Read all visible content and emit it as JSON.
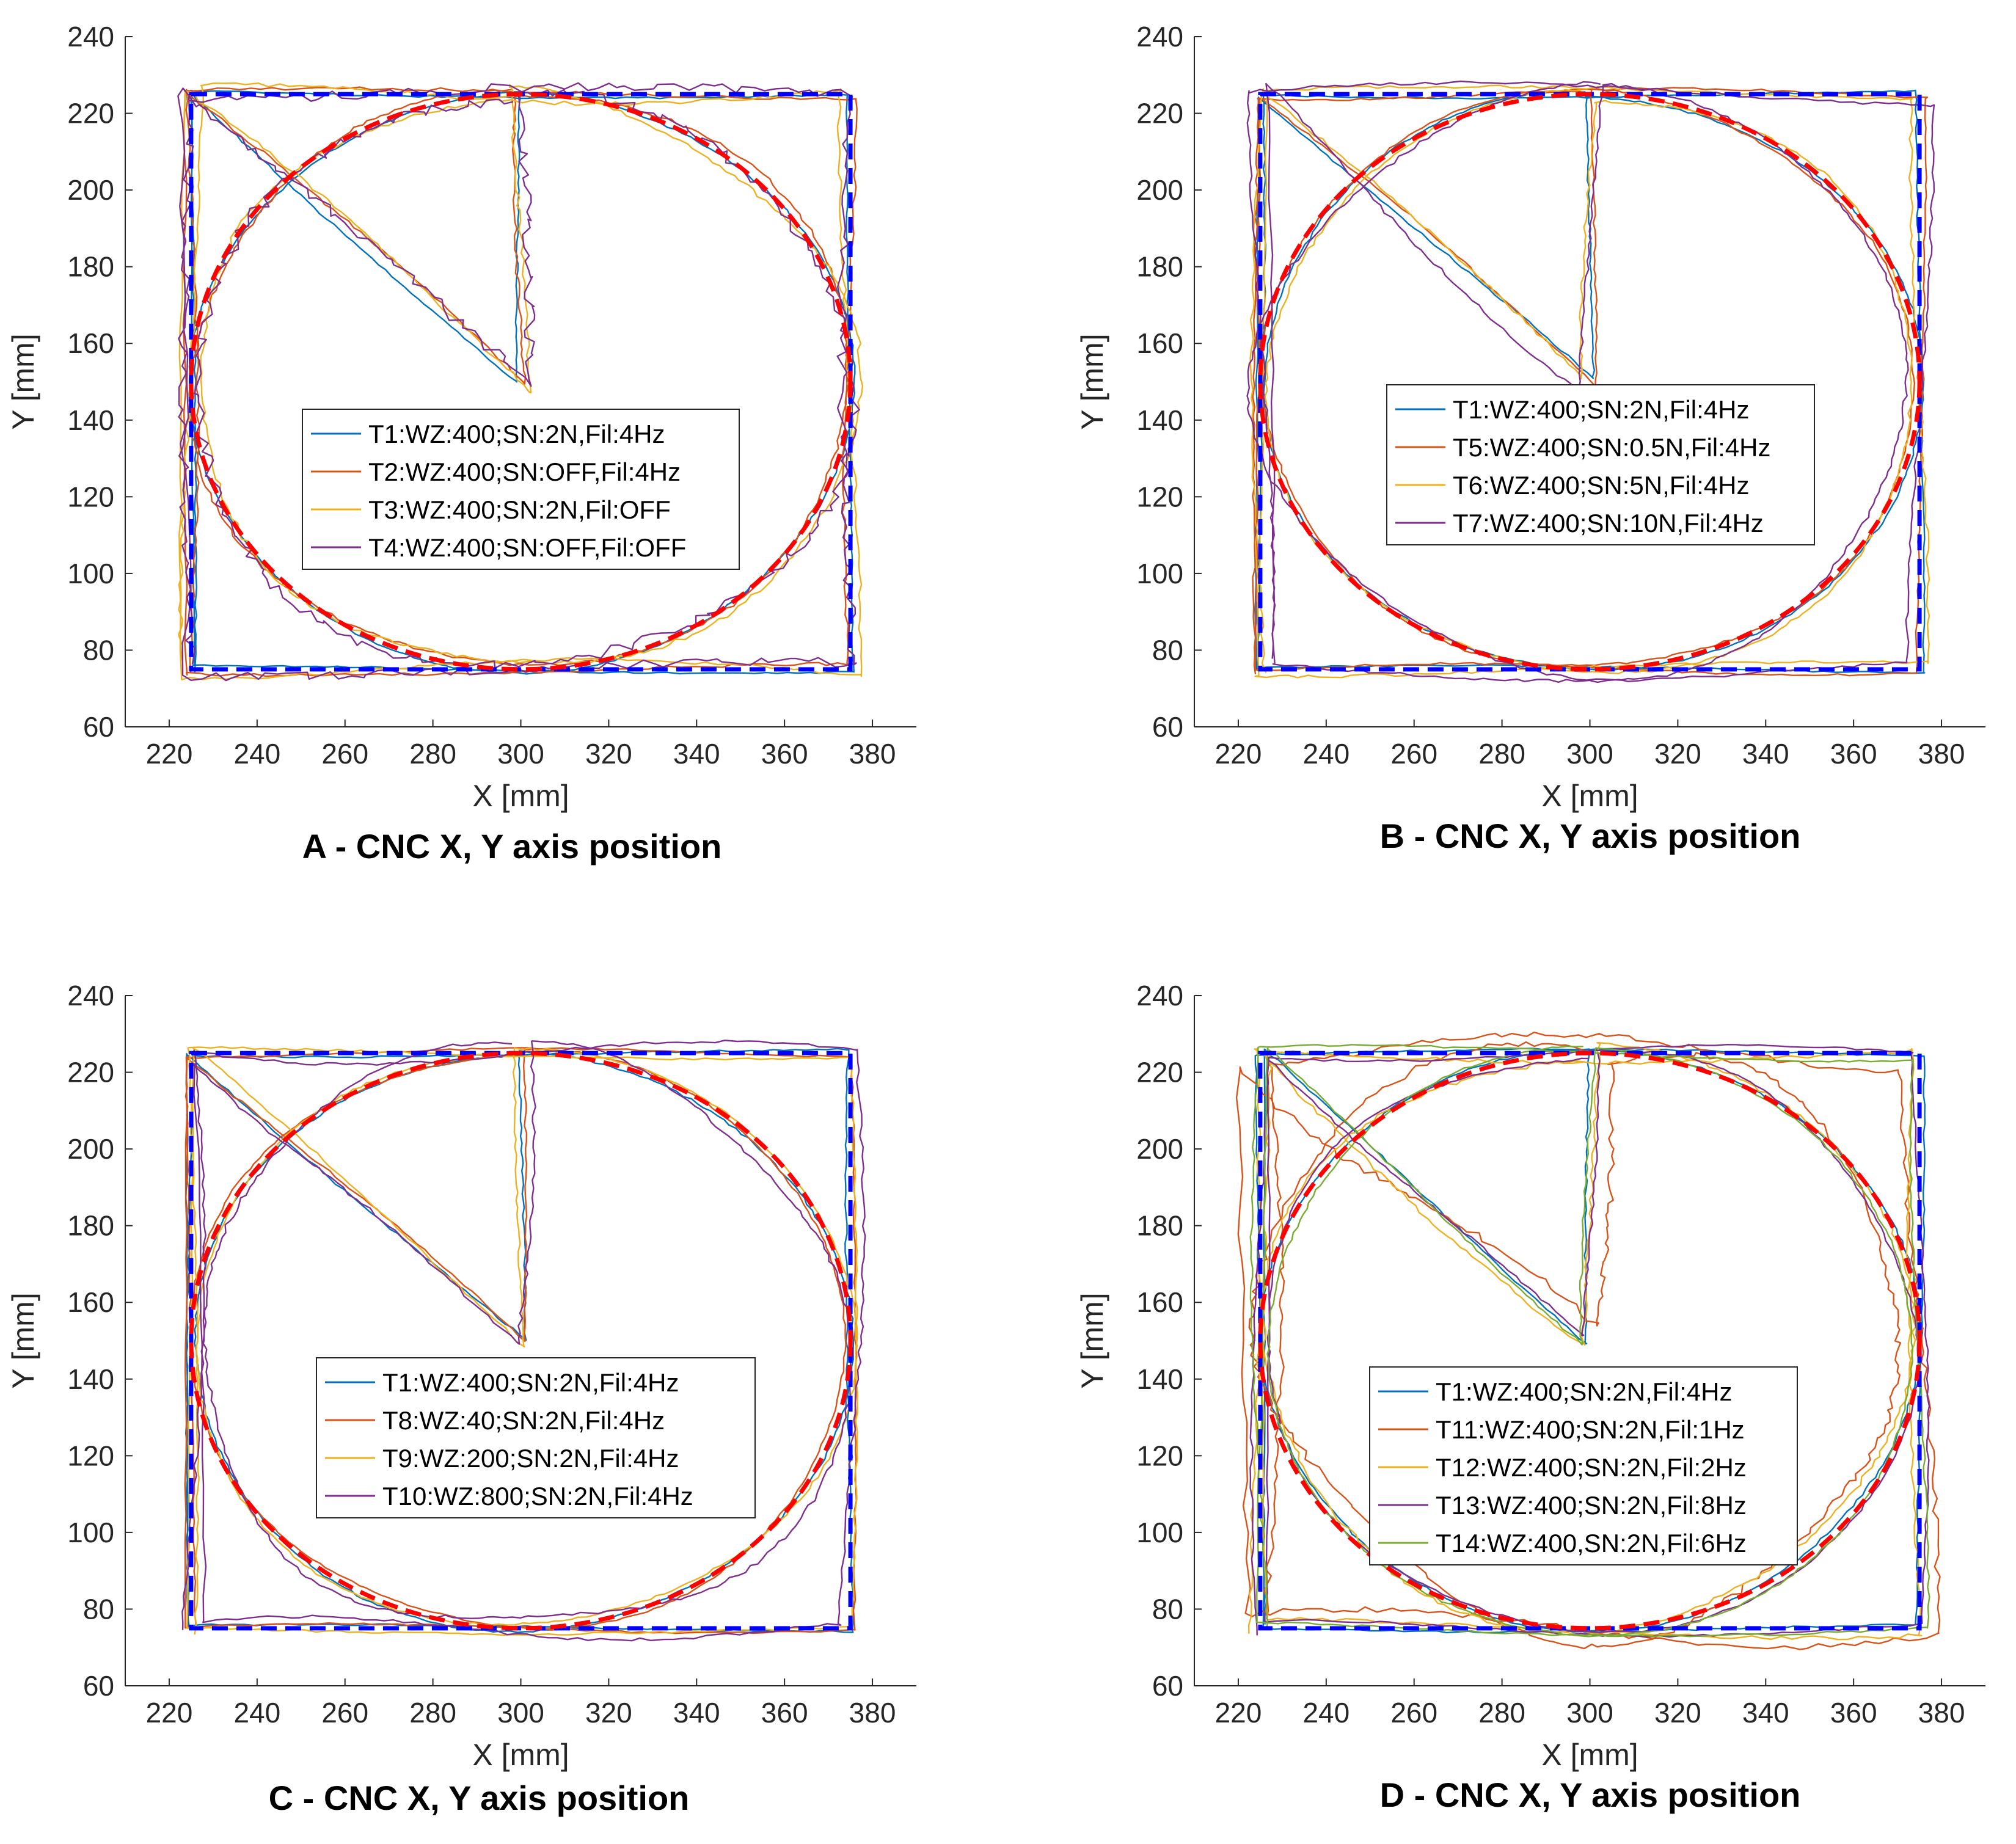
{
  "chart_data": [
    {
      "panel": "A",
      "type": "line",
      "caption": "A - CNC X, Y axis position",
      "xlabel": "X [mm]",
      "ylabel": "Y [mm]",
      "xlim": [
        210,
        390
      ],
      "ylim": [
        60,
        240
      ],
      "xticks": [
        220,
        240,
        260,
        280,
        300,
        320,
        340,
        360,
        380
      ],
      "yticks": [
        60,
        80,
        100,
        120,
        140,
        160,
        180,
        200,
        220,
        240
      ],
      "legend_position": "center",
      "reference": {
        "square": {
          "x": [
            225,
            375
          ],
          "y": [
            75,
            225
          ],
          "color": "#0000ff",
          "style": "dashed"
        },
        "circle": {
          "center": [
            300,
            150
          ],
          "radius": 75,
          "color": "#ff0000",
          "style": "dashed"
        }
      },
      "series": [
        {
          "name": "T1:WZ:400;SN:2N,Fil:4Hz",
          "color": "#0072bd",
          "dev": [
            1.0,
            0.5
          ],
          "seed": 11
        },
        {
          "name": "T2:WZ:400;SN:OFF,Fil:4Hz",
          "color": "#d95319",
          "dev": [
            1.5,
            0.8
          ],
          "seed": 12
        },
        {
          "name": "T3:WZ:400;SN:2N,Fil:OFF",
          "color": "#edb120",
          "dev": [
            2.5,
            1.0
          ],
          "seed": 13
        },
        {
          "name": "T4:WZ:400;SN:OFF,Fil:OFF",
          "color": "#7e2f8e",
          "dev": [
            2.0,
            2.5
          ],
          "seed": 14
        }
      ]
    },
    {
      "panel": "B",
      "type": "line",
      "caption": "B - CNC X, Y axis position",
      "xlabel": "X [mm]",
      "ylabel": "Y [mm]",
      "xlim": [
        210,
        390
      ],
      "ylim": [
        60,
        240
      ],
      "xticks": [
        220,
        240,
        260,
        280,
        300,
        320,
        340,
        360,
        380
      ],
      "yticks": [
        60,
        80,
        100,
        120,
        140,
        160,
        180,
        200,
        220,
        240
      ],
      "legend_position": "center",
      "reference": {
        "square": {
          "x": [
            225,
            375
          ],
          "y": [
            75,
            225
          ],
          "color": "#0000ff",
          "style": "dashed"
        },
        "circle": {
          "center": [
            300,
            150
          ],
          "radius": 75,
          "color": "#ff0000",
          "style": "dashed"
        }
      },
      "series": [
        {
          "name": "T1:WZ:400;SN:2N,Fil:4Hz",
          "color": "#0072bd",
          "dev": [
            1.0,
            0.5
          ],
          "seed": 21
        },
        {
          "name": "T5:WZ:400;SN:0.5N,Fil:4Hz",
          "color": "#d95319",
          "dev": [
            1.5,
            0.6
          ],
          "seed": 22
        },
        {
          "name": "T6:WZ:400;SN:5N,Fil:4Hz",
          "color": "#edb120",
          "dev": [
            2.0,
            0.8
          ],
          "seed": 23
        },
        {
          "name": "T7:WZ:400;SN:10N,Fil:4Hz",
          "color": "#7e2f8e",
          "dev": [
            3.0,
            0.8
          ],
          "seed": 24
        }
      ]
    },
    {
      "panel": "C",
      "type": "line",
      "caption": "C - CNC X, Y axis position",
      "xlabel": "X [mm]",
      "ylabel": "Y [mm]",
      "xlim": [
        210,
        390
      ],
      "ylim": [
        60,
        240
      ],
      "xticks": [
        220,
        240,
        260,
        280,
        300,
        320,
        340,
        360,
        380
      ],
      "yticks": [
        60,
        80,
        100,
        120,
        140,
        160,
        180,
        200,
        220,
        240
      ],
      "legend_position": "center",
      "reference": {
        "square": {
          "x": [
            225,
            375
          ],
          "y": [
            75,
            225
          ],
          "color": "#0000ff",
          "style": "dashed"
        },
        "circle": {
          "center": [
            300,
            150
          ],
          "radius": 75,
          "color": "#ff0000",
          "style": "dashed"
        }
      },
      "series": [
        {
          "name": "T1:WZ:400;SN:2N,Fil:4Hz",
          "color": "#0072bd",
          "dev": [
            1.0,
            0.5
          ],
          "seed": 31
        },
        {
          "name": "T8:WZ:40;SN:2N,Fil:4Hz",
          "color": "#d95319",
          "dev": [
            1.2,
            0.5
          ],
          "seed": 32
        },
        {
          "name": "T9:WZ:200;SN:2N,Fil:4Hz",
          "color": "#edb120",
          "dev": [
            1.5,
            0.6
          ],
          "seed": 33
        },
        {
          "name": "T10:WZ:800;SN:2N,Fil:4Hz",
          "color": "#7e2f8e",
          "dev": [
            3.0,
            0.8
          ],
          "seed": 34
        }
      ]
    },
    {
      "panel": "D",
      "type": "line",
      "caption": "D - CNC X, Y axis position",
      "xlabel": "X [mm]",
      "ylabel": "Y [mm]",
      "xlim": [
        210,
        390
      ],
      "ylim": [
        60,
        240
      ],
      "xticks": [
        220,
        240,
        260,
        280,
        300,
        320,
        340,
        360,
        380
      ],
      "yticks": [
        60,
        80,
        100,
        120,
        140,
        160,
        180,
        200,
        220,
        240
      ],
      "legend_position": "center",
      "reference": {
        "square": {
          "x": [
            225,
            375
          ],
          "y": [
            75,
            225
          ],
          "color": "#0000ff",
          "style": "dashed"
        },
        "circle": {
          "center": [
            300,
            150
          ],
          "radius": 75,
          "color": "#ff0000",
          "style": "dashed"
        }
      },
      "series": [
        {
          "name": "T1:WZ:400;SN:2N,Fil:4Hz",
          "color": "#0072bd",
          "dev": [
            1.0,
            0.5
          ],
          "seed": 41
        },
        {
          "name": "T11:WZ:400;SN:2N,Fil:1Hz",
          "color": "#d95319",
          "dev": [
            5.0,
            1.5
          ],
          "seed": 42
        },
        {
          "name": "T12:WZ:400;SN:2N,Fil:2Hz",
          "color": "#edb120",
          "dev": [
            2.5,
            1.0
          ],
          "seed": 43
        },
        {
          "name": "T13:WZ:400;SN:2N,Fil:8Hz",
          "color": "#7e2f8e",
          "dev": [
            2.0,
            0.6
          ],
          "seed": 44
        },
        {
          "name": "T14:WZ:400,SN:2N,Fil:6Hz",
          "color": "#77ac30",
          "dev": [
            2.0,
            0.6
          ],
          "seed": 45
        }
      ]
    }
  ]
}
